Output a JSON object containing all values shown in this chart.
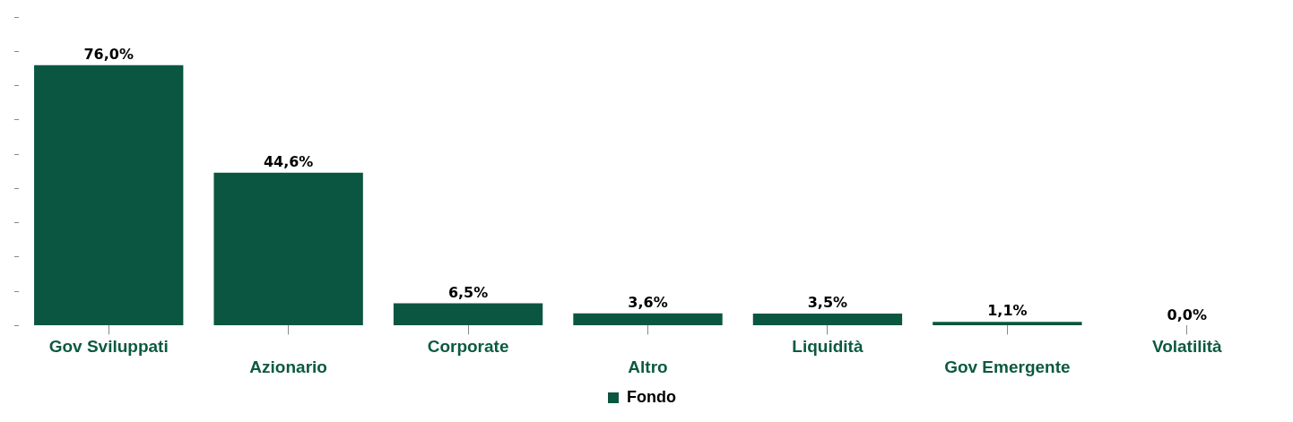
{
  "chart_data": {
    "type": "bar",
    "categories": [
      "Gov Sviluppati",
      "Azionario",
      "Corporate",
      "Altro",
      "Liquidità",
      "Gov Emergente",
      "Volatilità"
    ],
    "series": [
      {
        "name": "Fondo",
        "color": "#0a5640",
        "values": [
          76.0,
          44.6,
          6.5,
          3.6,
          3.5,
          1.1,
          0.0
        ],
        "value_labels": [
          "76,0%",
          "44,6%",
          "6,5%",
          "3,6%",
          "3,5%",
          "1,1%",
          "0,0%"
        ]
      }
    ],
    "grid": false,
    "legend": "bottom"
  }
}
